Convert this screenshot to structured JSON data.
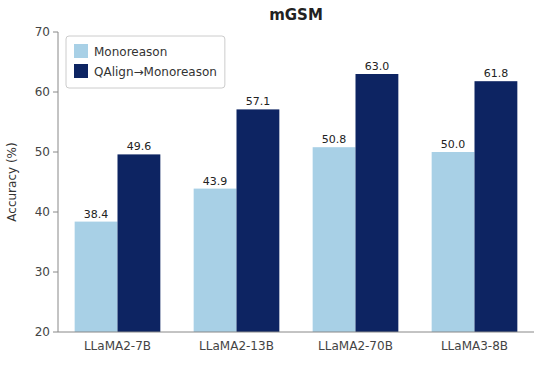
{
  "chart_data": {
    "type": "bar",
    "title": "mGSM",
    "y_label": "Accuracy (%)",
    "categories": [
      "LLaMA2-7B",
      "LLaMA2-13B",
      "LLaMA2-70B",
      "LLaMA3-8B"
    ],
    "series": [
      {
        "name": "Monoreason",
        "color": "#a8d0e6",
        "values": [
          38.4,
          43.9,
          50.8,
          50.0
        ],
        "value_labels": [
          "38.4",
          "43.9",
          "50.8",
          "50.0"
        ]
      },
      {
        "name": "QAlign→Monoreason",
        "color": "#0d2462",
        "values": [
          49.6,
          57.1,
          63.0,
          61.8
        ],
        "value_labels": [
          "49.6",
          "57.1",
          "63.0",
          "61.8"
        ]
      }
    ],
    "ylim": [
      20,
      70
    ],
    "yticks": [
      20,
      30,
      40,
      50,
      60,
      70
    ],
    "legend": "upper left",
    "data_labels": true,
    "grid": false
  }
}
